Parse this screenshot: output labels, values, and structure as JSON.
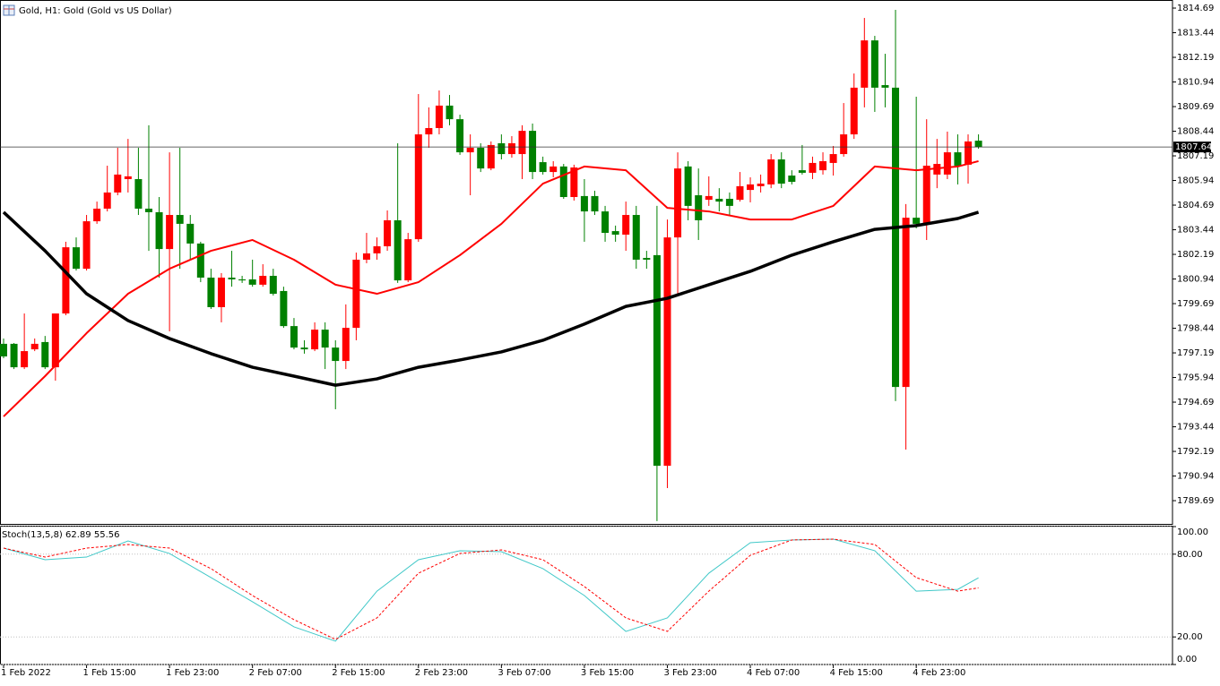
{
  "chart_data": [
    {
      "type": "candlestick",
      "title": "Gold, H1:  Gold (Gold vs US Dollar)",
      "categories": [
        "1 Feb 2022",
        null,
        null,
        null,
        null,
        null,
        null,
        null,
        "1 Feb 15:00",
        null,
        null,
        null,
        null,
        null,
        null,
        null,
        "1 Feb 23:00",
        null,
        null,
        null,
        null,
        null,
        null,
        null,
        "2 Feb 07:00",
        null,
        null,
        null,
        null,
        null,
        null,
        null,
        "2 Feb 15:00",
        null,
        null,
        null,
        null,
        null,
        null,
        null,
        "2 Feb 23:00",
        null,
        null,
        null,
        null,
        null,
        null,
        null,
        "3 Feb 07:00",
        null,
        null,
        null,
        null,
        null,
        null,
        null,
        "3 Feb 15:00",
        null,
        null,
        null,
        null,
        null,
        null,
        null,
        "3 Feb 23:00",
        null,
        null,
        null,
        null,
        null,
        null,
        null,
        "4 Feb 07:00",
        null,
        null,
        null,
        null,
        null,
        null,
        null,
        "4 Feb 15:00",
        null,
        null,
        null,
        null,
        null,
        null,
        null,
        "4 Feb 23:00",
        null,
        null,
        null,
        null,
        null,
        null
      ],
      "open": [
        1797.65,
        1797.65,
        1796.46,
        1797.37,
        1797.74,
        1796.46,
        1799.19,
        1802.55,
        1801.46,
        1803.87,
        1804.51,
        1805.33,
        1806.01,
        1806.01,
        1804.51,
        1804.33,
        1802.46,
        1804.19,
        1803.74,
        1802.74,
        1801.01,
        1799.51,
        1801.01,
        1800.92,
        1800.92,
        1800.65,
        1801.1,
        1800.33,
        1798.55,
        1797.46,
        1797.37,
        1798.37,
        1797.46,
        1796.78,
        1798.46,
        1801.92,
        1802.24,
        1802.6,
        1803.92,
        1800.87,
        1802.96,
        1808.28,
        1808.6,
        1809.74,
        1809.05,
        1807.37,
        1807.6,
        1806.55,
        1807.83,
        1807.28,
        1807.28,
        1808.46,
        1806.87,
        1806.37,
        1806.65,
        1805.1,
        1805.15,
        1805.15,
        1804.37,
        1803.37,
        1803.19,
        1804.19,
        1802.01,
        1802.15,
        1791.46,
        1803.05,
        1806.65,
        1805.19,
        1804.96,
        1805.01,
        1805.01,
        1804.96,
        1805.46,
        1805.65,
        1805.74,
        1807.01,
        1806.19,
        1806.46,
        1806.33,
        1806.46,
        1806.83,
        1807.28,
        1808.28,
        1810.65,
        1813.05,
        1810.78,
        1810.65,
        1795.46,
        1804.05,
        1803.74,
        1806.24,
        1806.24,
        1807.37,
        1806.74,
        1807.96
      ],
      "high": [
        1797.92,
        1797.69,
        1799.19,
        1797.92,
        1798.05,
        1799.19,
        1802.83,
        1803.05,
        1804.19,
        1804.87,
        1806.69,
        1807.6,
        1808.05,
        1807.6,
        1808.74,
        1805.1,
        1807.37,
        1807.6,
        1804.19,
        1802.83,
        1801.46,
        1801.24,
        1802.37,
        1801.1,
        1801.92,
        1801.69,
        1801.46,
        1800.55,
        1798.96,
        1797.83,
        1798.74,
        1798.74,
        1797.83,
        1799.65,
        1802.28,
        1803.28,
        1803.05,
        1804.42,
        1807.83,
        1803.28,
        1810.33,
        1809.65,
        1810.51,
        1810.28,
        1809.28,
        1808.28,
        1807.83,
        1807.92,
        1808.28,
        1808.19,
        1808.74,
        1808.83,
        1807.15,
        1806.92,
        1806.78,
        1806.74,
        1806.01,
        1805.42,
        1804.65,
        1803.65,
        1804.87,
        1804.65,
        1802.37,
        1804.65,
        1803.96,
        1807.37,
        1806.92,
        1806.55,
        1806.15,
        1805.55,
        1805.33,
        1806.37,
        1806.1,
        1806.24,
        1807.28,
        1807.37,
        1806.46,
        1807.74,
        1807.15,
        1807.37,
        1807.69,
        1809.87,
        1811.37,
        1814.19,
        1813.28,
        1812.37,
        1814.6,
        1804.74,
        1810.19,
        1809.05,
        1808.05,
        1808.42,
        1808.28,
        1808.28,
        1808.28
      ],
      "low": [
        1796.92,
        1796.37,
        1796.37,
        1797.28,
        1796.37,
        1795.78,
        1799.1,
        1801.37,
        1801.37,
        1803.74,
        1804.37,
        1805.19,
        1805.33,
        1804.19,
        1802.37,
        1801.01,
        1798.28,
        1801.46,
        1801.92,
        1800.78,
        1799.42,
        1798.74,
        1800.55,
        1800.74,
        1800.55,
        1800.55,
        1800.1,
        1798.46,
        1797.37,
        1797.15,
        1797.28,
        1796.37,
        1794.33,
        1796.37,
        1797.83,
        1801.74,
        1801.92,
        1802.37,
        1800.74,
        1800.78,
        1802.83,
        1807.6,
        1808.28,
        1808.74,
        1807.24,
        1805.19,
        1806.37,
        1806.46,
        1807.01,
        1807.1,
        1806.01,
        1806.01,
        1806.24,
        1806.1,
        1805.01,
        1804.92,
        1802.83,
        1804.19,
        1802.83,
        1802.83,
        1802.37,
        1801.46,
        1801.46,
        1788.65,
        1790.33,
        1800.1,
        1803.92,
        1802.92,
        1804.65,
        1804.37,
        1804.19,
        1804.87,
        1804.83,
        1805.33,
        1805.55,
        1805.55,
        1805.74,
        1806.24,
        1806.01,
        1806.24,
        1806.19,
        1807.15,
        1808.05,
        1809.65,
        1809.42,
        1809.65,
        1794.74,
        1792.28,
        1803.51,
        1802.92,
        1805.55,
        1806.01,
        1805.74,
        1805.78,
        1807.55
      ],
      "close": [
        1797.01,
        1796.46,
        1797.28,
        1797.65,
        1796.46,
        1799.19,
        1802.55,
        1801.46,
        1803.87,
        1804.51,
        1805.33,
        1806.24,
        1806.15,
        1804.51,
        1804.33,
        1802.46,
        1804.19,
        1803.74,
        1802.74,
        1801.01,
        1799.51,
        1801.01,
        1800.92,
        1800.87,
        1800.65,
        1801.1,
        1800.19,
        1798.55,
        1797.46,
        1797.37,
        1798.37,
        1797.46,
        1796.78,
        1798.46,
        1801.92,
        1802.24,
        1802.6,
        1803.92,
        1800.87,
        1802.96,
        1808.28,
        1808.6,
        1809.74,
        1809.05,
        1807.37,
        1807.6,
        1806.55,
        1807.74,
        1807.28,
        1807.83,
        1808.46,
        1806.37,
        1806.37,
        1806.65,
        1805.1,
        1806.6,
        1804.37,
        1804.37,
        1803.28,
        1803.19,
        1804.19,
        1801.92,
        1801.92,
        1791.46,
        1803.05,
        1806.55,
        1804.65,
        1803.92,
        1805.15,
        1804.87,
        1804.65,
        1805.65,
        1805.74,
        1805.78,
        1807.01,
        1805.78,
        1805.87,
        1806.33,
        1806.83,
        1806.92,
        1807.28,
        1808.28,
        1810.65,
        1813.05,
        1810.65,
        1810.65,
        1795.46,
        1804.05,
        1803.74,
        1806.69,
        1806.78,
        1807.37,
        1806.69,
        1807.92,
        1807.64
      ],
      "up_color": "#ff0000",
      "down_color": "#008000",
      "overlays": [
        {
          "color": "#ff0000",
          "x": [
            0,
            4,
            8,
            12,
            16,
            20,
            24,
            28,
            32,
            36,
            40,
            44,
            48,
            52,
            56,
            60,
            64,
            68,
            72,
            76,
            80,
            84,
            88,
            92,
            94
          ],
          "values": [
            1793.96,
            1796.01,
            1798.19,
            1800.19,
            1801.46,
            1802.37,
            1802.92,
            1801.92,
            1800.65,
            1800.19,
            1800.78,
            1802.15,
            1803.74,
            1805.78,
            1806.65,
            1806.46,
            1804.55,
            1804.37,
            1803.96,
            1803.96,
            1804.65,
            1806.65,
            1806.46,
            1806.65,
            1806.92
          ]
        },
        {
          "color": "#000000",
          "x": [
            0,
            4,
            8,
            12,
            16,
            20,
            24,
            28,
            32,
            36,
            40,
            44,
            48,
            52,
            56,
            60,
            64,
            68,
            72,
            76,
            80,
            84,
            88,
            92,
            94
          ],
          "values": [
            1804.33,
            1802.37,
            1800.19,
            1798.83,
            1797.92,
            1797.15,
            1796.46,
            1796.01,
            1795.55,
            1795.87,
            1796.46,
            1796.83,
            1797.24,
            1797.83,
            1798.65,
            1799.55,
            1799.96,
            1800.65,
            1801.33,
            1802.15,
            1802.83,
            1803.46,
            1803.65,
            1804.01,
            1804.33
          ]
        }
      ],
      "ylim": [
        1788.51,
        1815.1
      ],
      "yticks": [
        1814.69,
        1813.44,
        1812.19,
        1810.94,
        1809.69,
        1808.44,
        1807.19,
        1805.94,
        1804.69,
        1803.44,
        1802.19,
        1800.94,
        1799.69,
        1798.44,
        1797.19,
        1795.94,
        1794.69,
        1793.44,
        1792.19,
        1790.94,
        1789.69
      ]
    },
    {
      "type": "line",
      "title": "Stoch(13,5,8)",
      "x": [
        0,
        4,
        8,
        12,
        16,
        20,
        24,
        28,
        32,
        36,
        40,
        44,
        48,
        52,
        56,
        60,
        64,
        68,
        72,
        76,
        80,
        84,
        88,
        92,
        94
      ],
      "series": [
        {
          "color": "#40c8c8",
          "values": [
            84.4,
            76.0,
            77.9,
            89.6,
            80.5,
            63.0,
            45.5,
            27.3,
            16.9,
            53.2,
            76.0,
            82.5,
            81.8,
            69.5,
            50.0,
            24.0,
            33.8,
            66.2,
            88.3,
            90.3,
            90.9,
            82.5,
            53.2,
            54.5,
            62.89
          ]
        },
        {
          "color": "#ff0000",
          "dashed": true,
          "values": [
            84.4,
            77.9,
            84.4,
            87.0,
            84.4,
            69.5,
            50.0,
            32.5,
            18.2,
            33.8,
            66.2,
            80.5,
            83.1,
            76.0,
            56.5,
            33.8,
            24.0,
            53.2,
            79.2,
            90.3,
            90.9,
            87.0,
            63.0,
            53.2,
            55.56
          ]
        }
      ],
      "ylim": [
        0,
        100
      ],
      "yticks": [
        {
          "value": 0,
          "label": "0.00"
        },
        {
          "value": 20,
          "label": "20.00"
        },
        {
          "value": 80,
          "label": "80.00"
        },
        {
          "value": 100,
          "label": "100.00"
        }
      ]
    }
  ]
}
